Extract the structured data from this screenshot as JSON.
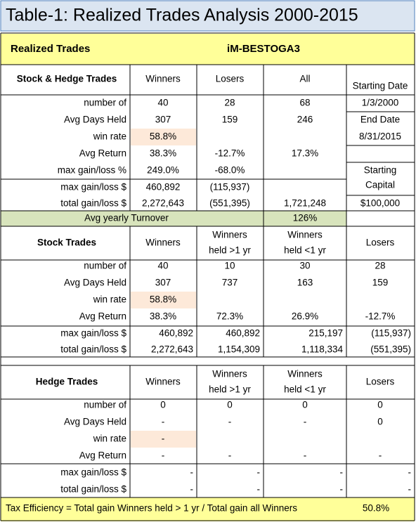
{
  "title": "Table-1:  Realized Trades Analysis  2000-2015",
  "header": {
    "label": "Realized Trades",
    "model": "iM-BESTOGA3"
  },
  "sections": [
    {
      "title": "Stock & Hedge Trades",
      "columns": [
        [
          "Winners"
        ],
        [
          "Losers"
        ],
        [
          "All"
        ]
      ],
      "rows": [
        {
          "label": "number of",
          "cells": [
            "40",
            "28",
            "68"
          ]
        },
        {
          "label": "Avg Days Held",
          "cells": [
            "307",
            "159",
            "246"
          ]
        },
        {
          "label": "win rate",
          "cells": [
            "58.8%",
            null,
            null
          ]
        },
        {
          "label": "Avg Return",
          "cells": [
            "38.3%",
            "-12.7%",
            "17.3%"
          ]
        },
        {
          "label": "max gain/loss %",
          "cells": [
            "249.0%",
            "-68.0%",
            null
          ]
        },
        {
          "label": "max gain/loss $",
          "cells": [
            "460,892",
            "(115,937)",
            null
          ]
        },
        {
          "label": "total gain/loss $",
          "cells": [
            "2,272,643",
            "(551,395)",
            "1,721,248"
          ]
        }
      ]
    },
    {
      "title": "Stock Trades",
      "columns": [
        [
          "Winners"
        ],
        [
          "Winners",
          "held >1 yr"
        ],
        [
          "Winners",
          "held <1 yr"
        ],
        [
          "Losers"
        ]
      ],
      "rows": [
        {
          "label": "number of",
          "cells": [
            "40",
            "10",
            "30",
            "28"
          ]
        },
        {
          "label": "Avg Days Held",
          "cells": [
            "307",
            "737",
            "163",
            "159"
          ]
        },
        {
          "label": "win rate",
          "cells": [
            "58.8%",
            null,
            null,
            null
          ]
        },
        {
          "label": "Avg Return",
          "cells": [
            "38.3%",
            "72.3%",
            "26.9%",
            "-12.7%"
          ]
        },
        {
          "label": "max gain/loss $",
          "cells": [
            "460,892",
            "460,892",
            "215,197",
            "(115,937)"
          ]
        },
        {
          "label": "total gain/loss $",
          "cells": [
            "2,272,643",
            "1,154,309",
            "1,118,334",
            "(551,395)"
          ]
        }
      ]
    },
    {
      "title": "Hedge Trades",
      "columns": [
        [
          "Winners"
        ],
        [
          "Winners",
          "held >1 yr"
        ],
        [
          "Winners",
          "held <1 yr"
        ],
        [
          "Losers"
        ]
      ],
      "rows": [
        {
          "label": "number of",
          "cells": [
            "0",
            "0",
            "0",
            "0"
          ]
        },
        {
          "label": "Avg Days Held",
          "cells": [
            "-",
            "-",
            "-",
            "0"
          ]
        },
        {
          "label": "win rate",
          "cells": [
            "-",
            null,
            null,
            null
          ]
        },
        {
          "label": "Avg Return",
          "cells": [
            "-",
            "-",
            "-",
            "-"
          ]
        },
        {
          "label": "max gain/loss $",
          "cells": [
            "-",
            "-",
            "-",
            "-"
          ]
        },
        {
          "label": "total gain/loss $",
          "cells": [
            "-",
            "-",
            "-",
            "-"
          ]
        }
      ]
    }
  ],
  "side_info": [
    "Starting Date",
    "1/3/2000",
    "End Date",
    "8/31/2015",
    "Starting",
    "Capital",
    "$100,000"
  ],
  "turnover": {
    "label": "Avg yearly Turnover",
    "value": "126%"
  },
  "footer": {
    "label": "Tax Efficiency = Total gain Winners held > 1 yr / Total gain all Winners",
    "value": "50.8%"
  }
}
